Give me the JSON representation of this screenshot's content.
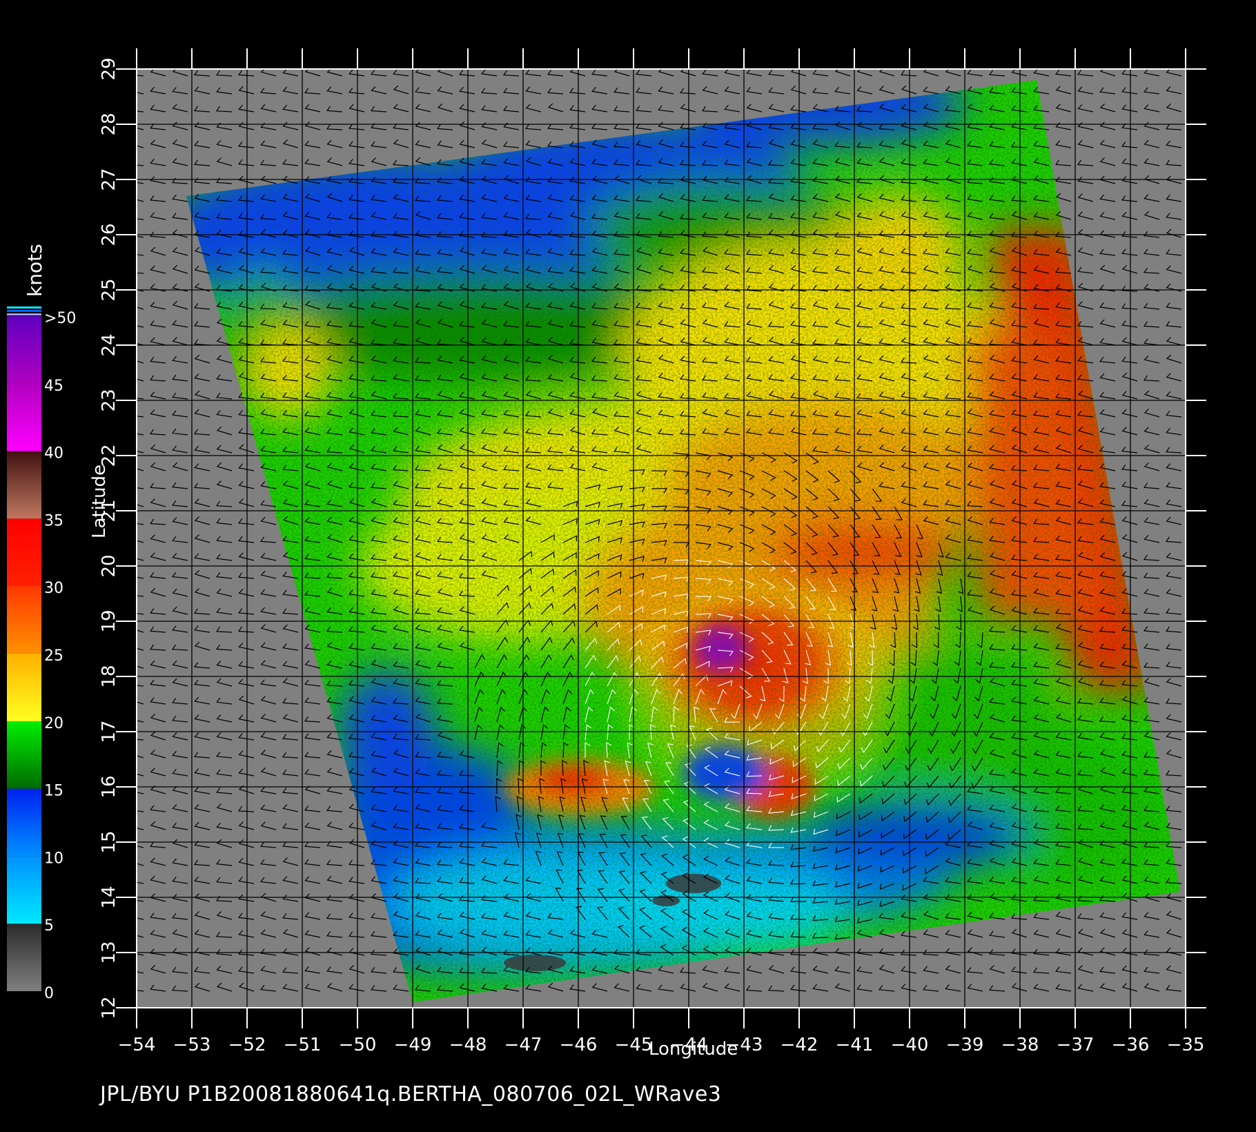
{
  "map": {
    "x_axis": {
      "label": "Longitude",
      "ticks": [
        "-54",
        "-53",
        "-52",
        "-51",
        "-50",
        "-49",
        "-48",
        "-47",
        "-46",
        "-45",
        "-44",
        "-43",
        "-42",
        "-41",
        "-40",
        "-39",
        "-38",
        "-37",
        "-36",
        "-35"
      ],
      "range": [
        -54,
        -35
      ]
    },
    "y_axis": {
      "label": "Latitude",
      "ticks": [
        "12",
        "13",
        "14",
        "15",
        "16",
        "17",
        "18",
        "19",
        "20",
        "21",
        "22",
        "23",
        "24",
        "25",
        "26",
        "27",
        "28",
        "29"
      ],
      "range": [
        12,
        29
      ]
    },
    "swath": {
      "corners_lonlat": [
        [
          -53.1,
          26.7
        ],
        [
          -37.7,
          28.8
        ],
        [
          -35.1,
          14.1
        ],
        [
          -49.0,
          12.1
        ]
      ]
    },
    "colorbar": {
      "unit_label": "knots",
      "tick_labels": [
        "0",
        "5",
        "10",
        "15",
        "20",
        "25",
        "30",
        "35",
        "40",
        "45",
        ">50"
      ],
      "stops": [
        {
          "value": 0,
          "color": "#808080"
        },
        {
          "value": 5,
          "color": "#2a2a2a"
        },
        {
          "value": 5.01,
          "color": "#00e8ff"
        },
        {
          "value": 10,
          "color": "#0090ff"
        },
        {
          "value": 15,
          "color": "#0020f0"
        },
        {
          "value": 15.01,
          "color": "#006a00"
        },
        {
          "value": 20,
          "color": "#00f000"
        },
        {
          "value": 20.01,
          "color": "#ffff20"
        },
        {
          "value": 25,
          "color": "#ffb000"
        },
        {
          "value": 25.01,
          "color": "#ff9000"
        },
        {
          "value": 30,
          "color": "#ff3800"
        },
        {
          "value": 30.01,
          "color": "#ff2000"
        },
        {
          "value": 35,
          "color": "#ff0000"
        },
        {
          "value": 35.01,
          "color": "#c07860"
        },
        {
          "value": 40,
          "color": "#401010"
        },
        {
          "value": 40.01,
          "color": "#ff00ff"
        },
        {
          "value": 45,
          "color": "#b000c0"
        },
        {
          "value": 50,
          "color": "#6000c0"
        }
      ]
    },
    "storm_center_lonlat": [
      -43.2,
      17.5
    ],
    "footer": "JPL/BYU  P1B20081880641q.BERTHA_080706_02L_WRave3"
  }
}
